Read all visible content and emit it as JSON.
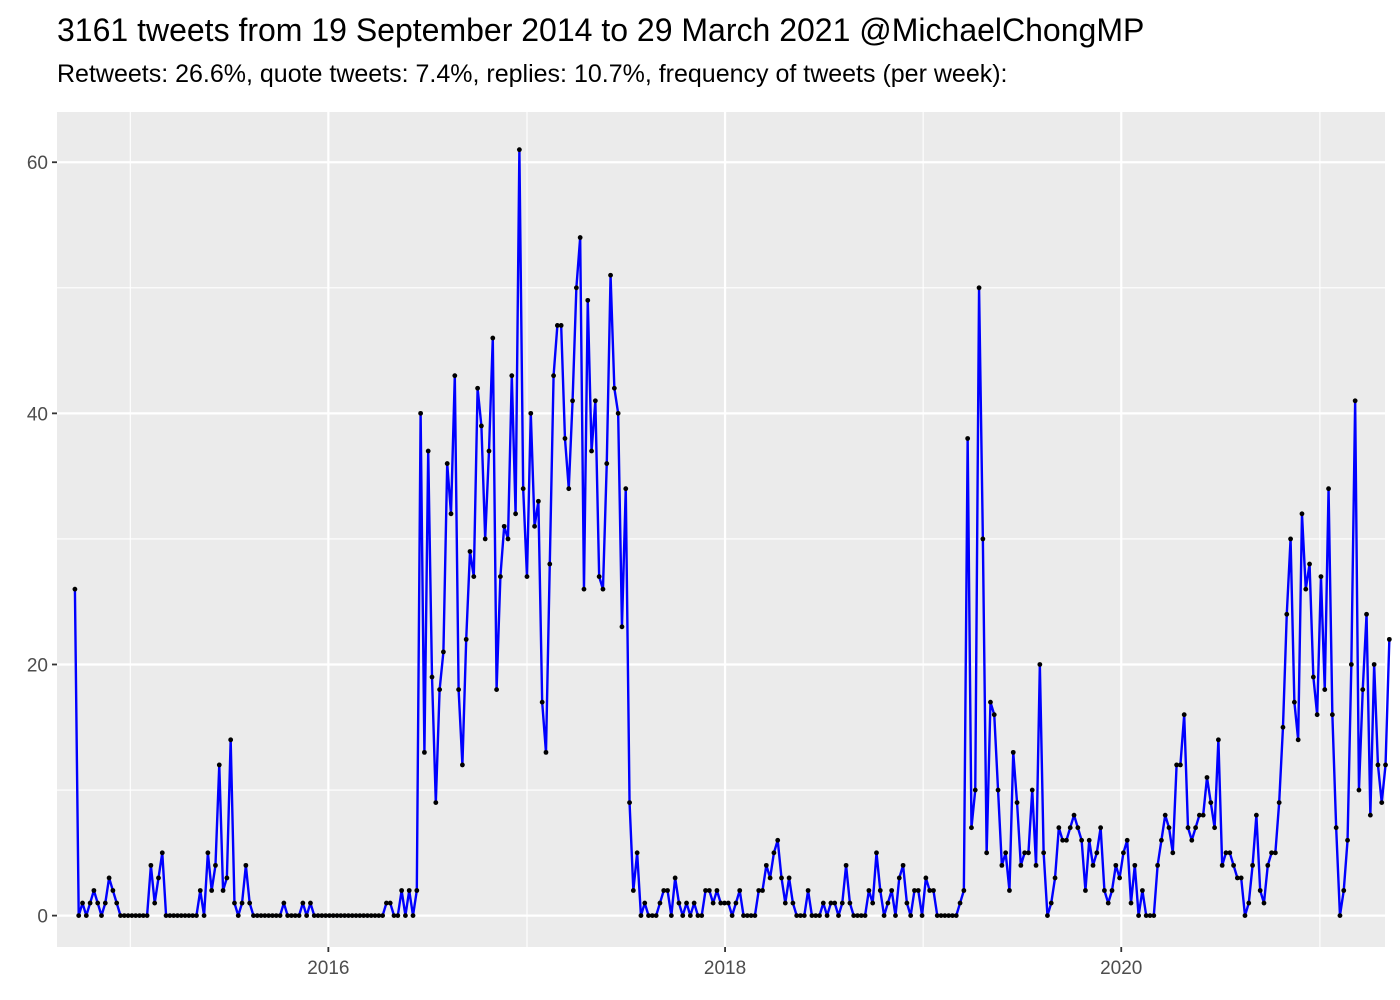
{
  "title": "3161 tweets from 19 September 2014 to 29 March 2021 @MichaelChongMP",
  "subtitle": "Retweets: 26.6%, quote tweets: 7.4%, replies: 10.7%, frequency of tweets (per week):",
  "chart_data": {
    "type": "line",
    "title": "3161 tweets from 19 September 2014 to 29 March 2021 @MichaelChongMP",
    "subtitle": "Retweets: 26.6%, quote tweets: 7.4%, replies: 10.7%, frequency of tweets (per week):",
    "xlabel": "",
    "ylabel": "",
    "x_range": [
      "2014-08-19",
      "2021-05-01"
    ],
    "ylim": [
      -2.5,
      64
    ],
    "y_ticks": [
      0,
      20,
      40,
      60
    ],
    "x_ticks": [
      "2016",
      "2018",
      "2020"
    ],
    "x_tick_dates": [
      "2016-01-01",
      "2018-01-01",
      "2020-01-01"
    ],
    "x_minor_dates": [
      "2015-01-01",
      "2017-01-01",
      "2019-01-01",
      "2021-01-01"
    ],
    "grid": true,
    "background": "#ebebeb",
    "line_color": "#0000ff",
    "point_color": "#000000",
    "series": [
      {
        "start": "2014-09-21",
        "interval_days": 7,
        "values": [
          26,
          0,
          1,
          0,
          1,
          2,
          1,
          0,
          1,
          3,
          2,
          1,
          0,
          0,
          0,
          0,
          0,
          0,
          0,
          0,
          4,
          1,
          3,
          5,
          0,
          0,
          0,
          0,
          0,
          0,
          0,
          0,
          0,
          2,
          0,
          5,
          2,
          4,
          12,
          2,
          3,
          14,
          1,
          0,
          1,
          4,
          1,
          0,
          0,
          0,
          0,
          0,
          0,
          0,
          0,
          1,
          0,
          0,
          0,
          0,
          1,
          0,
          1,
          0,
          0,
          0,
          0,
          0,
          0,
          0,
          0,
          0,
          0,
          0,
          0,
          0,
          0,
          0,
          0,
          0,
          0,
          0,
          1,
          1,
          0,
          0,
          2,
          0,
          2,
          0,
          2,
          40,
          13,
          37,
          19,
          9,
          18,
          21,
          36,
          32,
          43,
          18,
          12,
          22,
          29,
          27,
          42,
          39,
          30,
          37,
          46,
          18,
          27,
          31,
          30,
          43,
          32,
          61,
          34,
          27,
          40,
          31,
          33,
          17,
          13,
          28,
          43,
          47,
          47,
          38,
          34,
          41,
          50,
          54,
          26,
          49,
          37,
          41,
          27,
          26,
          36,
          51,
          42,
          40,
          23,
          34,
          9,
          2,
          5,
          0,
          1,
          0,
          0,
          0,
          1,
          2,
          2,
          0,
          3,
          1,
          0,
          1,
          0,
          1,
          0,
          0,
          2,
          2,
          1,
          2,
          1,
          1,
          1,
          0,
          1,
          2,
          0,
          0,
          0,
          0,
          2,
          2,
          4,
          3,
          5,
          6,
          3,
          1,
          3,
          1,
          0,
          0,
          0,
          2,
          0,
          0,
          0,
          1,
          0,
          1,
          1,
          0,
          1,
          4,
          1,
          0,
          0,
          0,
          0,
          2,
          1,
          5,
          2,
          0,
          1,
          2,
          0,
          3,
          4,
          1,
          0,
          2,
          2,
          0,
          3,
          2,
          2,
          0,
          0,
          0,
          0,
          0,
          0,
          1,
          2,
          38,
          7,
          10,
          50,
          30,
          5,
          17,
          16,
          10,
          4,
          5,
          2,
          13,
          9,
          4,
          5,
          5,
          10,
          4,
          20,
          5,
          0,
          1,
          3,
          7,
          6,
          6,
          7,
          8,
          7,
          6,
          2,
          6,
          4,
          5,
          7,
          2,
          1,
          2,
          4,
          3,
          5,
          6,
          1,
          4,
          0,
          2,
          0,
          0,
          0,
          4,
          6,
          8,
          7,
          5,
          12,
          12,
          16,
          7,
          6,
          7,
          8,
          8,
          11,
          9,
          7,
          14,
          4,
          5,
          5,
          4,
          3,
          3,
          0,
          1,
          4,
          8,
          2,
          1,
          4,
          5,
          5,
          9,
          15,
          24,
          30,
          17,
          14,
          32,
          26,
          28,
          19,
          16,
          27,
          18,
          34,
          16,
          7,
          0,
          2,
          6,
          20,
          41,
          10,
          18,
          24,
          8,
          20,
          12,
          9,
          12,
          22
        ]
      }
    ]
  }
}
